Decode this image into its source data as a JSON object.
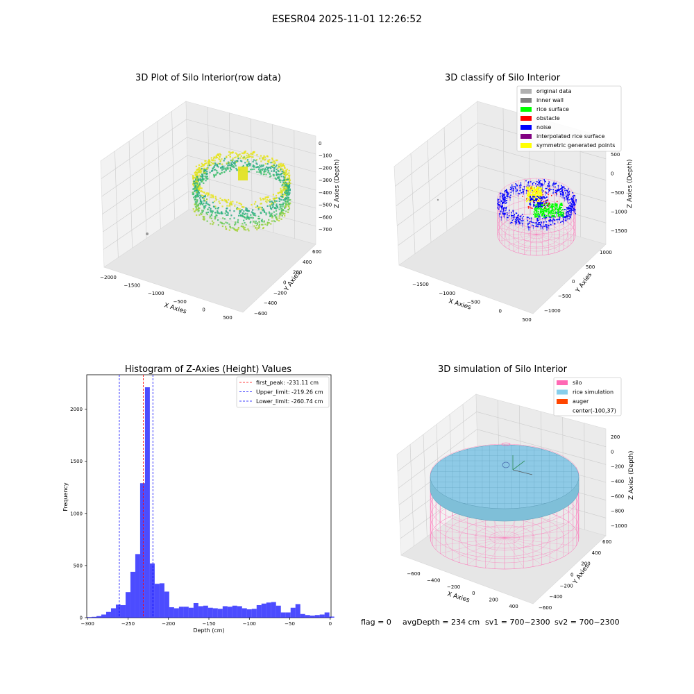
{
  "suptitle": "ESESR04 2025-11-01 12:26:52",
  "status_line": {
    "flag": "flag = 0",
    "avg_depth": "avgDepth = 234 cm",
    "sv1": "sv1 = 700~2300",
    "sv2": "sv2 = 700~2300"
  },
  "panel1": {
    "title": "3D Plot of Silo Interior(row data)",
    "xlabel": "X Axies",
    "ylabel": "Y Axies",
    "zlabel": "Z Axies (Depth)",
    "xticks": [
      "−2000",
      "−1500",
      "−1000",
      "−500",
      "0",
      "500"
    ],
    "yticks": [
      "−600",
      "−400",
      "−200",
      "0",
      "200",
      "400",
      "600"
    ],
    "zticks": [
      "0",
      "−100",
      "−200",
      "−300",
      "−400",
      "−500",
      "−600",
      "−700"
    ]
  },
  "panel2": {
    "title": "3D classify of Silo Interior",
    "xlabel": "X Axies",
    "ylabel": "Y Axies",
    "zlabel": "Z Axies (Depth)",
    "xticks": [
      "−1500",
      "−1000",
      "−500",
      "0",
      "500"
    ],
    "yticks": [
      "−1000",
      "−500",
      "0",
      "500",
      "1000"
    ],
    "zticks": [
      "500",
      "0",
      "−500",
      "−1000",
      "−1500"
    ],
    "legend": [
      {
        "label": "original data",
        "color": "#b0b0b0"
      },
      {
        "label": "inner wall",
        "color": "#808080"
      },
      {
        "label": "rice surface",
        "color": "#00ff00"
      },
      {
        "label": "obstacle",
        "color": "#ff0000"
      },
      {
        "label": "noise",
        "color": "#0000ff"
      },
      {
        "label": "interpolated rice surface",
        "color": "#800080"
      },
      {
        "label": "symmetric generated points",
        "color": "#ffff00"
      }
    ]
  },
  "panel4": {
    "title": "3D simulation of Silo Interior",
    "xlabel": "X Axies",
    "ylabel": "Y Axies",
    "zlabel": "Z Axies (Depth)",
    "xticks": [
      "−600",
      "−400",
      "−200",
      "0",
      "200",
      "400"
    ],
    "yticks": [
      "−600",
      "−400",
      "−200",
      "0",
      "200",
      "400",
      "600"
    ],
    "zticks": [
      "200",
      "0",
      "−200",
      "−400",
      "−600",
      "−800",
      "−1000"
    ],
    "legend": [
      {
        "label": "silo",
        "color": "#ff69b4"
      },
      {
        "label": "rice simulation",
        "color": "#87ceeb"
      },
      {
        "label": "auger",
        "color": "#ff4500"
      },
      {
        "label": "center(-100,37)",
        "color": ""
      }
    ]
  },
  "chart_data": {
    "type": "bar",
    "title": "Histogram of Z-Axies (Height) Values",
    "xlabel": "Depth (cm)",
    "ylabel": "Frequency",
    "xlim": [
      -301,
      1
    ],
    "ylim": [
      0,
      2330
    ],
    "xticks": [
      -300,
      -250,
      -200,
      -150,
      -100,
      -50,
      0
    ],
    "yticks": [
      0,
      500,
      1000,
      1500,
      2000
    ],
    "bar_color": "#0000ff",
    "bin_width": 6,
    "bin_starts": [
      -301,
      -295,
      -289,
      -283,
      -277,
      -271,
      -265,
      -259,
      -253,
      -247,
      -241,
      -235,
      -229,
      -223,
      -217,
      -211,
      -205,
      -199,
      -193,
      -187,
      -181,
      -175,
      -169,
      -163,
      -157,
      -151,
      -145,
      -139,
      -133,
      -127,
      -121,
      -115,
      -109,
      -103,
      -97,
      -91,
      -85,
      -79,
      -73,
      -67,
      -61,
      -55,
      -49,
      -43,
      -37,
      -31,
      -25,
      -19,
      -13,
      -7,
      -1
    ],
    "values": [
      5,
      8,
      15,
      30,
      55,
      90,
      125,
      120,
      245,
      440,
      610,
      1290,
      2210,
      520,
      325,
      330,
      250,
      100,
      90,
      105,
      105,
      95,
      140,
      110,
      115,
      95,
      90,
      85,
      110,
      105,
      115,
      110,
      90,
      80,
      85,
      120,
      135,
      145,
      150,
      115,
      50,
      50,
      95,
      130,
      35,
      25,
      20,
      25,
      30,
      50,
      10
    ],
    "vlines": [
      {
        "label": "first_peak: -231.11 cm",
        "x": -231.11,
        "color": "#ff0000"
      },
      {
        "label": "Upper_limit: -219.26 cm",
        "x": -219.26,
        "color": "#0000ff"
      },
      {
        "label": "Lower_limit: -260.74 cm",
        "x": -260.74,
        "color": "#0000ff"
      }
    ]
  }
}
